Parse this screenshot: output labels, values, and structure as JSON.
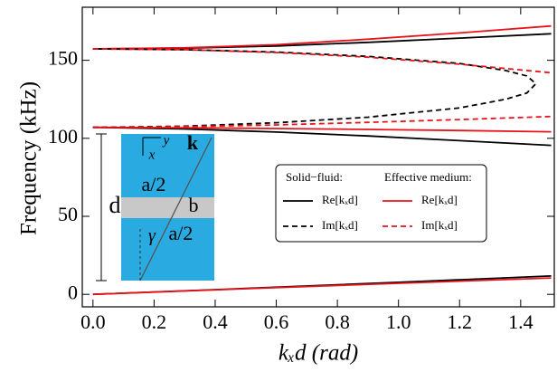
{
  "chart_data": {
    "type": "line",
    "xlabel": "kₓd (rad)",
    "ylabel": "Frequency (kHz)",
    "xlim": [
      -0.035,
      1.51
    ],
    "ylim": [
      -8,
      184
    ],
    "xticks": [
      {
        "value": 0,
        "label": "0.0"
      },
      0.2,
      0.4,
      0.6,
      0.8,
      {
        "value": 1,
        "label": "1.0"
      },
      1.2,
      1.4
    ],
    "yticks": [
      0,
      50,
      100,
      150
    ],
    "legend": {
      "titles": [
        "Solid−fluid:",
        "Effective medium:"
      ]
    },
    "series": [
      {
        "name": "Re[kₓd]",
        "color": "#000000",
        "dashed": false,
        "lines": [
          {
            "x": [
              0,
              0.5,
              1.0,
              1.5
            ],
            "values": [
              0,
              3.8,
              7.7,
              11.8
            ]
          },
          {
            "x": [
              0,
              0.3,
              0.6,
              0.9,
              1.2,
              1.5
            ],
            "values": [
              107,
              106,
              104,
              101.5,
              98.5,
              95.5
            ]
          },
          {
            "x": [
              0,
              0.3,
              0.6,
              0.9,
              1.2,
              1.5
            ],
            "values": [
              157.3,
              157.8,
              159.2,
              161.5,
              164.2,
              167
            ]
          }
        ]
      },
      {
        "name": "Re[kₓd]",
        "color": "#e8141b",
        "dashed": false,
        "lines": [
          {
            "x": [
              0,
              0.5,
              1.0,
              1.5
            ],
            "values": [
              0,
              3.6,
              7.1,
              10.5
            ]
          },
          {
            "x": [
              0,
              0.3,
              0.6,
              0.9,
              1.2,
              1.5
            ],
            "values": [
              107,
              106.8,
              106.3,
              105.7,
              105,
              104.2
            ]
          },
          {
            "x": [
              0,
              0.3,
              0.6,
              0.9,
              1.2,
              1.5
            ],
            "values": [
              157.3,
              158,
              160,
              163.5,
              167.5,
              172
            ]
          }
        ]
      },
      {
        "name": "Im[kₓd]",
        "color": "#000000",
        "dashed": true,
        "lines": [
          {
            "x": [
              0,
              0.3,
              0.6,
              0.9,
              1.2,
              1.35,
              1.42,
              1.45,
              1.42,
              1.35,
              1.2,
              0.9,
              0.6,
              0.3,
              0
            ],
            "values": [
              107,
              107.8,
              110,
              113.5,
              119.5,
              125,
              129,
              135,
              140,
              143.5,
              148,
              152.5,
              155.3,
              156.8,
              157.3
            ]
          }
        ]
      },
      {
        "name": "Im[kₓd]",
        "color": "#e8141b",
        "dashed": true,
        "lines": [
          {
            "x": [
              0,
              0.3,
              0.6,
              0.9,
              1.2,
              1.5
            ],
            "values": [
              107,
              107.5,
              108.6,
              110.2,
              112,
              114
            ]
          },
          {
            "x": [
              0,
              0.3,
              0.6,
              0.9,
              1.2,
              1.5
            ],
            "values": [
              157.3,
              156.8,
              155,
              152,
              147.5,
              142
            ]
          }
        ]
      }
    ],
    "inset": {
      "d": "d",
      "a_top": "a/2",
      "b": "b",
      "a_bottom": "a/2",
      "k": "k",
      "x": "x",
      "y": "y",
      "gamma": "γ"
    }
  }
}
